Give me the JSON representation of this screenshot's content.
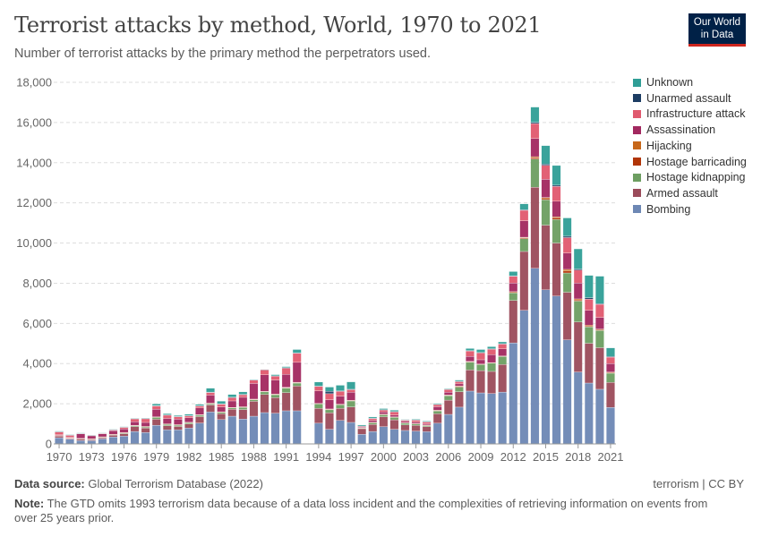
{
  "header": {
    "title": "Terrorist attacks by method, World, 1970 to 2021",
    "subtitle": "Number of terrorist attacks by the primary method the perpetrators used.",
    "logo": "Our World in Data"
  },
  "footer": {
    "source_label": "Data source:",
    "source": "Global Terrorism Database (2022)",
    "license": "terrorism | CC BY",
    "note_label": "Note:",
    "note": "The GTD omits 1993 terrorism data because of a data loss incident and the complexities of retrieving information on events from over 25 years prior."
  },
  "chart_data": {
    "type": "bar",
    "stacked": true,
    "title": "Terrorist attacks by method, World, 1970 to 2021",
    "ylim": [
      0,
      18000
    ],
    "yticks": [
      0,
      2000,
      4000,
      6000,
      8000,
      10000,
      12000,
      14000,
      16000,
      18000
    ],
    "ytick_labels": [
      "0",
      "2,000",
      "4,000",
      "6,000",
      "8,000",
      "10,000",
      "12,000",
      "14,000",
      "16,000",
      "18,000"
    ],
    "xtick_labels": [
      "1970",
      "1973",
      "1976",
      "1979",
      "1982",
      "1985",
      "1988",
      "1991",
      "1994",
      "1997",
      "2000",
      "2003",
      "2006",
      "2009",
      "2012",
      "2015",
      "2018",
      "2021"
    ],
    "grid": true,
    "legend_position": "right",
    "legend_order": [
      "Unknown",
      "Unarmed assault",
      "Infrastructure attack",
      "Assassination",
      "Hijacking",
      "Hostage barricading",
      "Hostage kidnapping",
      "Armed assault",
      "Bombing"
    ],
    "categories": [
      1970,
      1971,
      1972,
      1973,
      1974,
      1975,
      1976,
      1977,
      1978,
      1979,
      1980,
      1981,
      1982,
      1983,
      1984,
      1985,
      1986,
      1987,
      1988,
      1989,
      1990,
      1991,
      1992,
      1993,
      1994,
      1995,
      1996,
      1997,
      1998,
      1999,
      2000,
      2001,
      2002,
      2003,
      2004,
      2005,
      2006,
      2007,
      2008,
      2009,
      2010,
      2011,
      2012,
      2013,
      2014,
      2015,
      2016,
      2017,
      2018,
      2019,
      2020,
      2021
    ],
    "series": [
      {
        "name": "Bombing",
        "color": "#6d87b4",
        "values": [
          310,
          240,
          170,
          160,
          250,
          350,
          390,
          620,
          570,
          930,
          700,
          700,
          790,
          1040,
          1590,
          1210,
          1380,
          1240,
          1380,
          1560,
          1530,
          1650,
          1650,
          null,
          1030,
          730,
          1170,
          1070,
          480,
          620,
          860,
          730,
          670,
          640,
          610,
          1030,
          1470,
          1830,
          2630,
          2540,
          2510,
          2580,
          5030,
          6650,
          8740,
          7670,
          7360,
          5180,
          3580,
          3030,
          2720,
          1820
        ]
      },
      {
        "name": "Armed assault",
        "color": "#9b4b5a",
        "values": [
          90,
          40,
          80,
          60,
          60,
          80,
          120,
          240,
          220,
          300,
          210,
          170,
          200,
          320,
          350,
          290,
          350,
          470,
          740,
          900,
          770,
          900,
          1230,
          null,
          740,
          820,
          600,
          770,
          280,
          350,
          490,
          470,
          280,
          280,
          250,
          470,
          710,
          770,
          1050,
          1110,
          1100,
          1370,
          2110,
          2930,
          4040,
          3220,
          2640,
          2370,
          2490,
          1980,
          2070,
          1240
        ]
      },
      {
        "name": "Hostage kidnapping",
        "color": "#6d9e61",
        "values": [
          10,
          10,
          10,
          20,
          30,
          30,
          40,
          50,
          60,
          90,
          60,
          70,
          70,
          70,
          60,
          70,
          60,
          110,
          80,
          130,
          150,
          230,
          150,
          null,
          220,
          150,
          180,
          300,
          20,
          80,
          100,
          120,
          90,
          80,
          60,
          140,
          220,
          230,
          390,
          310,
          410,
          400,
          380,
          640,
          1400,
          1260,
          1170,
          960,
          1040,
          820,
          860,
          460
        ]
      },
      {
        "name": "Hostage barricading",
        "color": "#b13507",
        "values": [
          5,
          5,
          5,
          5,
          10,
          10,
          10,
          10,
          10,
          20,
          20,
          10,
          10,
          20,
          20,
          20,
          20,
          20,
          20,
          20,
          20,
          20,
          20,
          null,
          20,
          20,
          20,
          20,
          10,
          20,
          20,
          20,
          10,
          10,
          10,
          30,
          30,
          50,
          30,
          10,
          20,
          20,
          40,
          40,
          70,
          60,
          90,
          100,
          60,
          40,
          40,
          30
        ]
      },
      {
        "name": "Hijacking",
        "color": "#c7671a",
        "values": [
          10,
          5,
          10,
          10,
          5,
          5,
          5,
          10,
          10,
          10,
          10,
          10,
          10,
          10,
          10,
          10,
          10,
          10,
          10,
          10,
          10,
          20,
          20,
          null,
          10,
          20,
          10,
          10,
          10,
          10,
          10,
          10,
          10,
          10,
          10,
          10,
          10,
          10,
          10,
          10,
          10,
          10,
          20,
          30,
          50,
          60,
          50,
          80,
          50,
          40,
          30,
          30
        ]
      },
      {
        "name": "Assassination",
        "color": "#a2285f",
        "values": [
          30,
          30,
          230,
          150,
          150,
          180,
          180,
          170,
          200,
          380,
          270,
          270,
          220,
          330,
          400,
          240,
          320,
          470,
          780,
          820,
          700,
          640,
          990,
          null,
          620,
          460,
          400,
          400,
          40,
          90,
          110,
          90,
          70,
          70,
          60,
          170,
          130,
          100,
          250,
          210,
          390,
          350,
          430,
          820,
          900,
          900,
          770,
          810,
          790,
          740,
          580,
          420
        ]
      },
      {
        "name": "Infrastructure attack",
        "color": "#e0596e",
        "values": [
          150,
          110,
          20,
          20,
          30,
          50,
          90,
          160,
          190,
          160,
          170,
          130,
          90,
          90,
          130,
          140,
          160,
          130,
          160,
          250,
          190,
          310,
          450,
          null,
          220,
          300,
          240,
          130,
          40,
          100,
          100,
          150,
          60,
          100,
          100,
          110,
          140,
          110,
          270,
          340,
          280,
          240,
          330,
          520,
          750,
          700,
          740,
          770,
          640,
          560,
          650,
          320
        ]
      },
      {
        "name": "Unarmed assault",
        "color": "#1d3d63",
        "values": [
          5,
          5,
          5,
          0,
          0,
          5,
          5,
          5,
          10,
          20,
          10,
          10,
          20,
          30,
          20,
          20,
          30,
          20,
          30,
          10,
          20,
          30,
          20,
          null,
          20,
          120,
          20,
          20,
          10,
          10,
          10,
          20,
          10,
          10,
          10,
          20,
          20,
          20,
          20,
          20,
          20,
          20,
          30,
          30,
          60,
          60,
          60,
          70,
          60,
          70,
          30,
          30
        ]
      },
      {
        "name": "Unknown",
        "color": "#2f9e96",
        "values": [
          30,
          20,
          20,
          20,
          15,
          20,
          20,
          15,
          20,
          80,
          60,
          50,
          70,
          60,
          190,
          130,
          130,
          120,
          10,
          0,
          60,
          50,
          170,
          null,
          200,
          210,
          280,
          370,
          50,
          60,
          60,
          70,
          20,
          30,
          30,
          40,
          30,
          60,
          100,
          150,
          100,
          90,
          210,
          290,
          760,
          920,
          980,
          910,
          1000,
          1110,
          1370,
          430
        ]
      }
    ]
  }
}
